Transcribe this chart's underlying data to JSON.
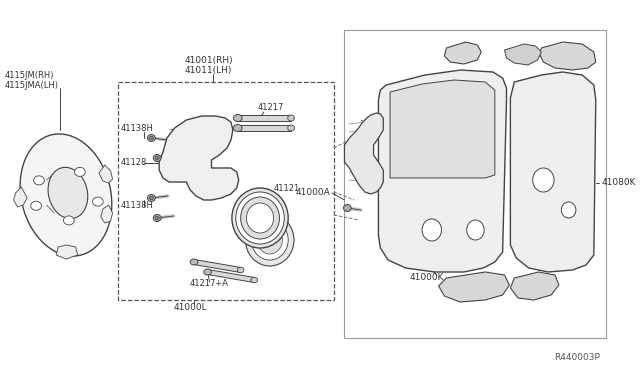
{
  "bg_color": "#ffffff",
  "line_color": "#444444",
  "part_color": "#333333",
  "ref_number": "R440003P",
  "font_size": 6.5,
  "labels": {
    "shield_rh": "4115JM(RH)",
    "shield_lh": "4115JMA(LH)",
    "caliper_rh": "41001(RH)",
    "caliper_lh": "41011(LH)",
    "bolt_top": "41138H",
    "bracket": "41128",
    "bolt_bot": "41138H",
    "pin_top": "41217",
    "piston": "41121",
    "pin_bot": "41217+A",
    "assy_bot": "41000L",
    "pad_assy": "41000A",
    "pad_kit": "41000K",
    "shim": "41080K"
  }
}
